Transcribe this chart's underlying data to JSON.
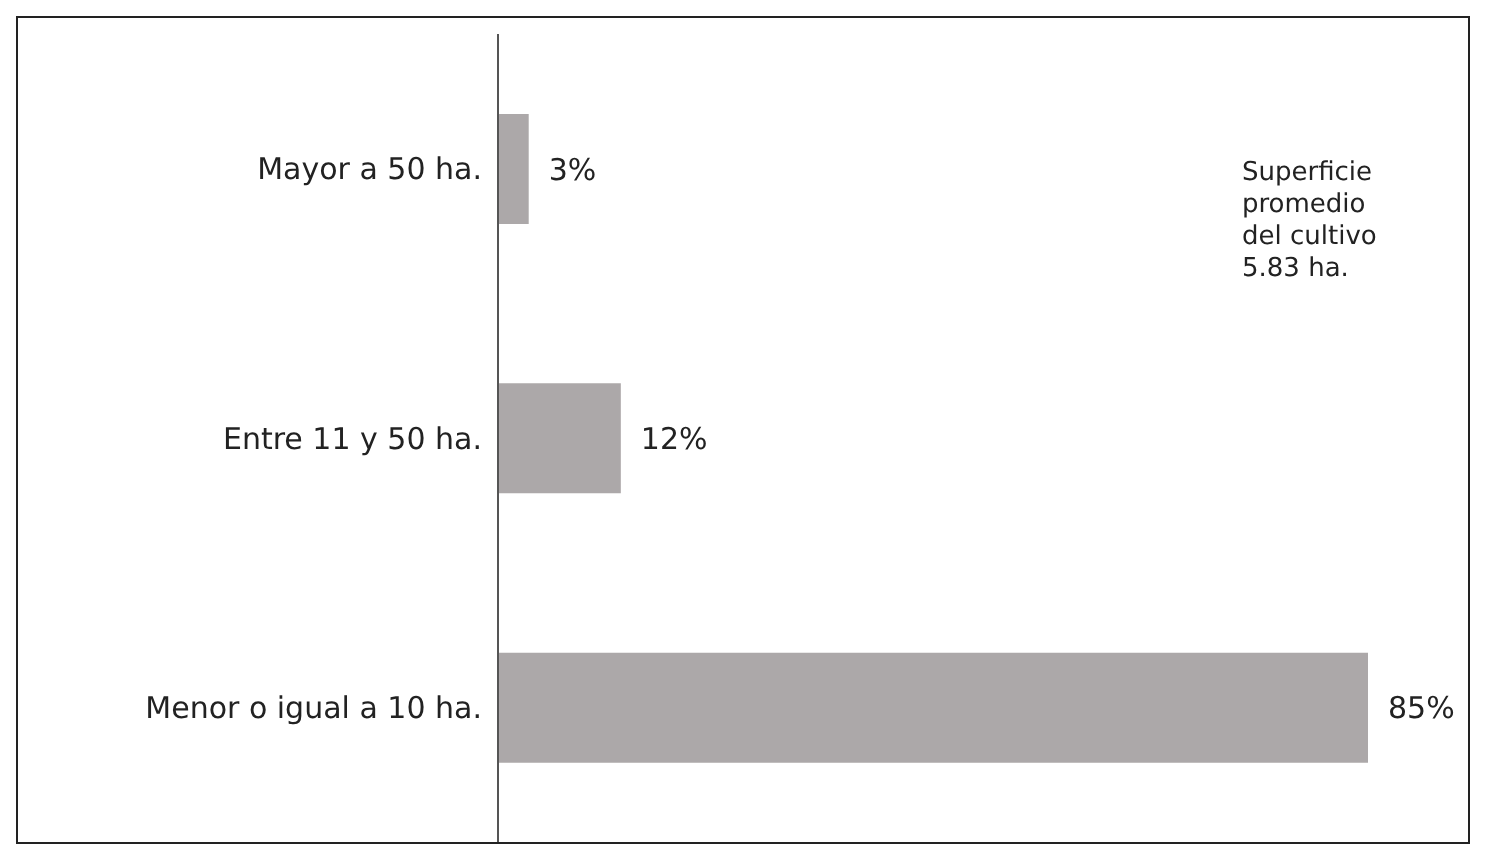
{
  "chart_data": {
    "type": "bar",
    "orientation": "horizontal",
    "categories": [
      "Mayor a 50 ha.",
      "Entre 11 y 50 ha.",
      "Menor o igual a 10 ha."
    ],
    "values": [
      3,
      12,
      85
    ],
    "value_labels": [
      "3%",
      "12%",
      "85%"
    ],
    "color": "#aca8a9",
    "annotations": [
      "Superficie promedio del cultivo 5.83 ha."
    ]
  }
}
